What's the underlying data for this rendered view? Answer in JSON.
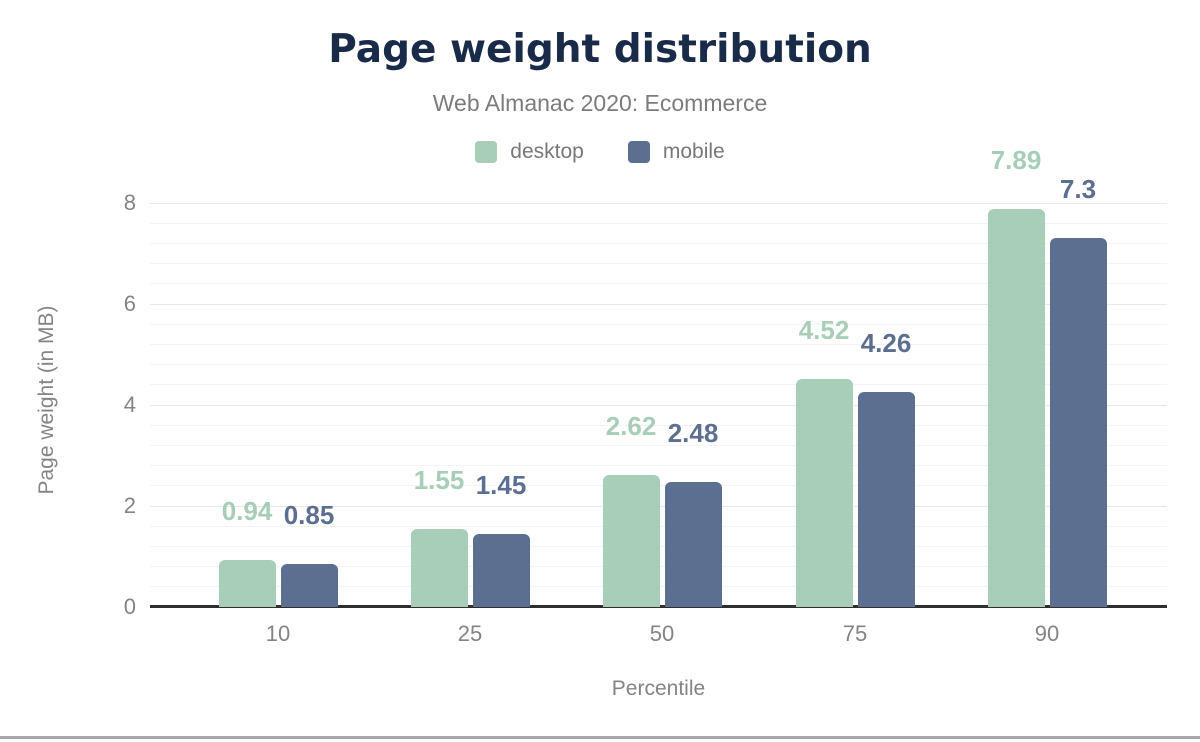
{
  "chart_data": {
    "type": "bar",
    "title": "Page weight distribution",
    "subtitle": "Web Almanac 2020: Ecommerce",
    "xlabel": "Percentile",
    "ylabel": "Page weight (in MB)",
    "categories": [
      "10",
      "25",
      "50",
      "75",
      "90"
    ],
    "series": [
      {
        "name": "desktop",
        "color": "#a8cdb8",
        "values": [
          0.94,
          1.55,
          2.62,
          4.52,
          7.89
        ]
      },
      {
        "name": "mobile",
        "color": "#5d6f90",
        "values": [
          0.85,
          1.45,
          2.48,
          4.26,
          7.3
        ]
      }
    ],
    "ylim": [
      0,
      8
    ],
    "yticks": [
      0,
      2,
      4,
      6,
      8
    ],
    "minor_gridline_step": 0.4,
    "grid": true,
    "legend_position": "top",
    "value_labels_shown": true
  },
  "styles": {
    "title_color": "#1a2b49",
    "subtitle_color": "#7c7c7c",
    "legend_text_color": "#787878",
    "axis_text_color": "#848484",
    "axis_line_color": "#2f2f2f",
    "major_grid_color": "#e8e8e8",
    "minor_grid_color": "#f4f4f4",
    "footer_bar_color": "#a8a8a8",
    "background_color": "#ffffff"
  }
}
